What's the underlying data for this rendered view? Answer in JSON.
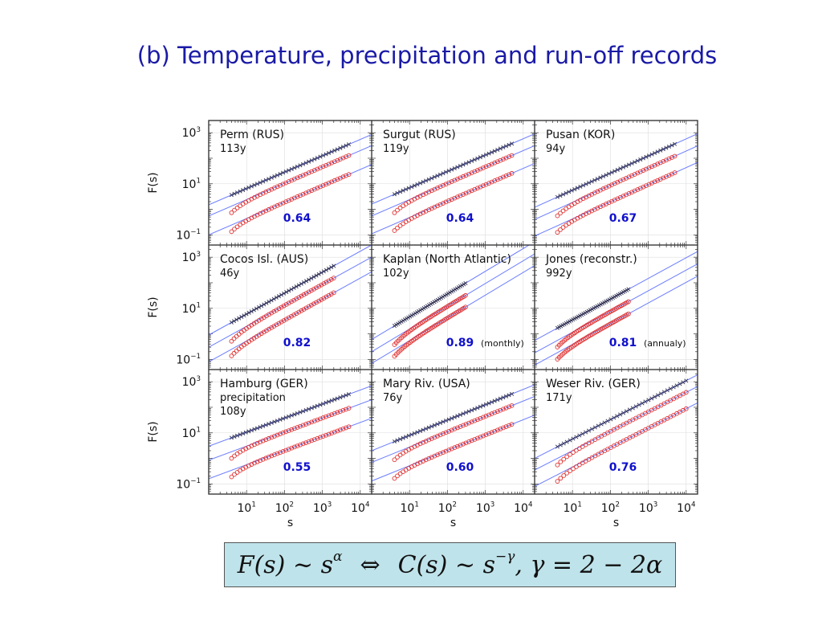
{
  "slide": {
    "title": "(b) Temperature, precipitation and run-off records"
  },
  "formula": {
    "left_base": "F(s) ~ s",
    "left_exp": "α",
    "equiv": "⇔",
    "right_base": "C(s) ~ s",
    "right_exp": "−γ",
    "right_tail": ", γ = 2 − 2α"
  },
  "axes_text": {
    "ylabel": "F(s)",
    "xlabel": "s",
    "y_ticks": [
      {
        "base": "10",
        "exp": "3"
      },
      {
        "base": "10",
        "exp": "1"
      },
      {
        "base": "10",
        "exp": "−1"
      }
    ],
    "x_ticks": [
      {
        "base": "10",
        "exp": "1"
      },
      {
        "base": "10",
        "exp": "2"
      },
      {
        "base": "10",
        "exp": "3"
      },
      {
        "base": "10",
        "exp": "4"
      }
    ]
  },
  "colors": {
    "fit_line": "#6a7cff",
    "cross_marker": "#333355",
    "circle_marker": "#e03030",
    "exponent_text": "#1010cc",
    "formula_bg": "#bfe3ea"
  },
  "chart_data": [
    {
      "type": "scatter",
      "name": "Perm (RUS)",
      "lines": [
        "Perm (RUS)",
        "113y"
      ],
      "alpha": "0.64",
      "note": "",
      "xlog": true,
      "ylog": true,
      "xlim": [
        1,
        20000
      ],
      "ylim": [
        0.04,
        3000
      ],
      "s_max": 5000,
      "series_start": [
        1.5,
        0.55,
        0.1
      ],
      "series_slope": [
        0.64,
        0.64,
        0.64
      ]
    },
    {
      "type": "scatter",
      "name": "Surgut (RUS)",
      "lines": [
        "Surgut (RUS)",
        "119y"
      ],
      "alpha": "0.64",
      "note": "",
      "xlog": true,
      "ylog": true,
      "xlim": [
        1,
        20000
      ],
      "ylim": [
        0.04,
        3000
      ],
      "s_max": 5000,
      "series_start": [
        1.6,
        0.55,
        0.11
      ],
      "series_slope": [
        0.64,
        0.64,
        0.64
      ]
    },
    {
      "type": "scatter",
      "name": "Pusan (KOR)",
      "lines": [
        "Pusan (KOR)",
        "94y"
      ],
      "alpha": "0.67",
      "note": "",
      "xlog": true,
      "ylog": true,
      "xlim": [
        1,
        20000
      ],
      "ylim": [
        0.04,
        3000
      ],
      "s_max": 5000,
      "series_start": [
        1.2,
        0.4,
        0.09
      ],
      "series_slope": [
        0.67,
        0.67,
        0.67
      ]
    },
    {
      "type": "scatter",
      "name": "Cocos Isl. (AUS)",
      "lines": [
        "Cocos Isl. (AUS)",
        "46y"
      ],
      "alpha": "0.82",
      "note": "",
      "xlog": true,
      "ylog": true,
      "xlim": [
        1,
        20000
      ],
      "ylim": [
        0.04,
        3000
      ],
      "s_max": 2000,
      "series_start": [
        0.9,
        0.3,
        0.08
      ],
      "series_slope": [
        0.82,
        0.82,
        0.82
      ]
    },
    {
      "type": "scatter",
      "name": "Kaplan (North Atlantic)",
      "lines": [
        "Kaplan (North Atlantic)",
        "102y"
      ],
      "alpha": "0.89",
      "note": "(monthly)",
      "xlog": true,
      "ylog": true,
      "xlim": [
        1,
        20000
      ],
      "ylim": [
        0.04,
        3000
      ],
      "s_max": 300,
      "series_start": [
        0.6,
        0.2,
        0.07
      ],
      "series_slope": [
        0.89,
        0.89,
        0.89
      ]
    },
    {
      "type": "scatter",
      "name": "Jones (reconstr.)",
      "lines": [
        "Jones (reconstr.)",
        "992y"
      ],
      "alpha": "0.81",
      "note": "(annualy)",
      "xlog": true,
      "ylog": true,
      "xlim": [
        1,
        20000
      ],
      "ylim": [
        0.04,
        3000
      ],
      "s_max": 300,
      "series_start": [
        0.55,
        0.18,
        0.06
      ],
      "series_slope": [
        0.81,
        0.81,
        0.81
      ]
    },
    {
      "type": "scatter",
      "name": "Hamburg (GER) precipitation",
      "lines": [
        "Hamburg (GER)",
        "precipitation",
        "108y"
      ],
      "alpha": "0.55",
      "note": "",
      "xlog": true,
      "ylog": true,
      "xlim": [
        1,
        20000
      ],
      "ylim": [
        0.04,
        3000
      ],
      "s_max": 5000,
      "series_start": [
        3.0,
        0.85,
        0.16
      ],
      "series_slope": [
        0.55,
        0.55,
        0.55
      ]
    },
    {
      "type": "scatter",
      "name": "Mary Riv. (USA)",
      "lines": [
        "Mary Riv. (USA)",
        "76y"
      ],
      "alpha": "0.60",
      "note": "",
      "xlog": true,
      "ylog": true,
      "xlim": [
        1,
        20000
      ],
      "ylim": [
        0.04,
        3000
      ],
      "s_max": 5000,
      "series_start": [
        2.0,
        0.7,
        0.13
      ],
      "series_slope": [
        0.6,
        0.6,
        0.6
      ]
    },
    {
      "type": "scatter",
      "name": "Weser Riv. (GER)",
      "lines": [
        "Weser Riv. (GER)",
        "171y"
      ],
      "alpha": "0.76",
      "note": "",
      "xlog": true,
      "ylog": true,
      "xlim": [
        1,
        20000
      ],
      "ylim": [
        0.04,
        3000
      ],
      "s_max": 10000,
      "series_start": [
        1.0,
        0.35,
        0.08
      ],
      "series_slope": [
        0.76,
        0.76,
        0.76
      ]
    }
  ]
}
